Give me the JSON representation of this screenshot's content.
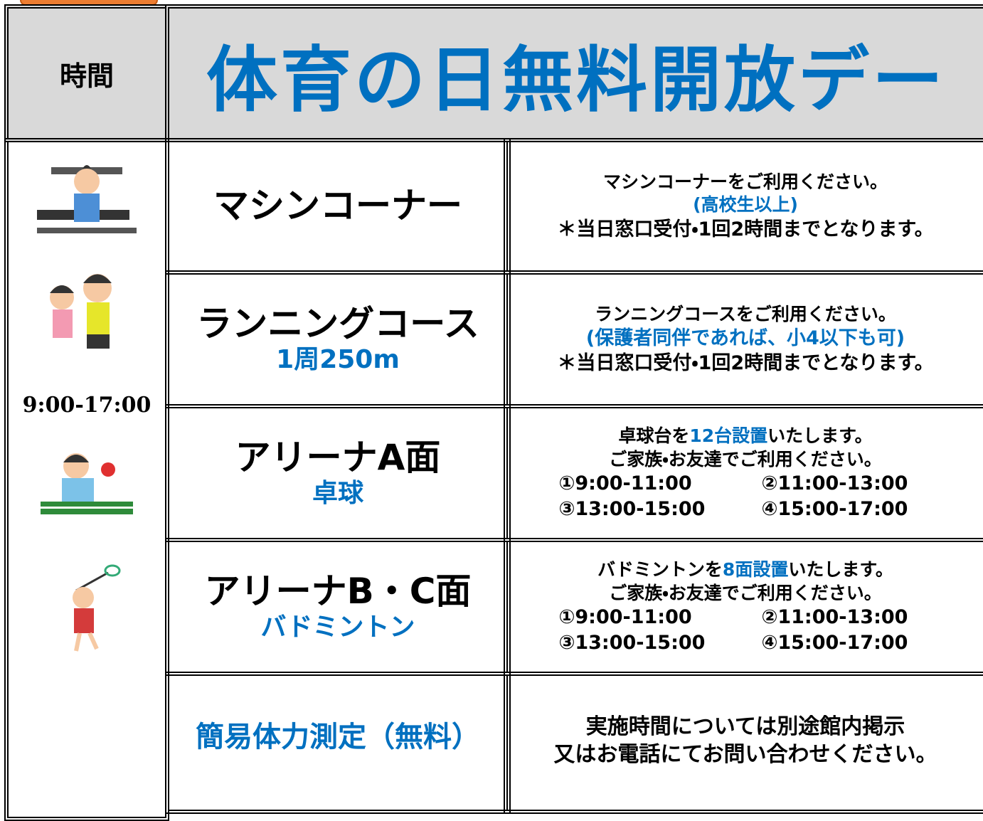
{
  "header": {
    "time_label": "時間",
    "title": "体育の日無料開放デー"
  },
  "time": "9:00-17:00",
  "rows": [
    {
      "name": "マシンコーナー",
      "lines": [
        "マシンコーナーをご利用ください。",
        "(高校生以上)",
        "＊当日窓口受付・1回2時間までとなります。"
      ]
    },
    {
      "name": "ランニングコース",
      "sub": "1周250m",
      "lines": [
        "ランニングコースをご利用ください。",
        "(保護者同伴であれば、小4以下も可)",
        "＊当日窓口受付・1回2時間までとなります。"
      ]
    },
    {
      "name": "アリーナA面",
      "sub": "卓球",
      "intro": [
        "卓球台を",
        "12台設置",
        "いたします。"
      ],
      "line": "ご家族・お友達でご利用ください。",
      "slots": [
        "①9:00-11:00",
        "②11:00-13:00",
        "③13:00-15:00",
        "④15:00-17:00"
      ]
    },
    {
      "name": "アリーナB・C面",
      "sub": "バドミントン",
      "intro": [
        "バドミントンを",
        "8面設置",
        "いたします。"
      ],
      "line": "ご家族・お友達でご利用ください。",
      "slots": [
        "①9:00-11:00",
        "②11:00-13:00",
        "③13:00-15:00",
        "④15:00-17:00"
      ]
    },
    {
      "name": "簡易体力測定（無料）",
      "lines": [
        "実施時間については別途館内掲示",
        "又はお電話にてお問い合わせください。"
      ]
    }
  ]
}
